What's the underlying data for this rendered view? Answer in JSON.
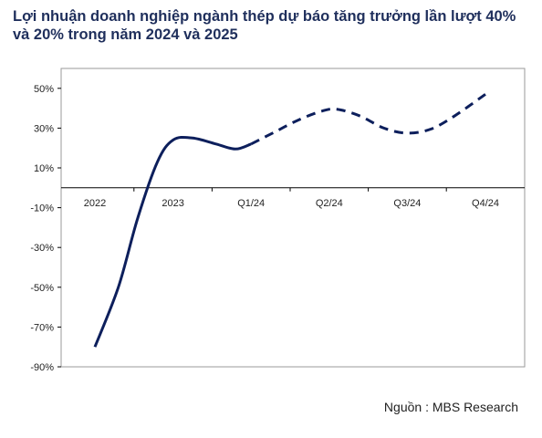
{
  "title": "Lợi nhuận doanh nghiệp ngành thép dự báo tăng trưởng lần lượt 40% và 20% trong năm 2024 và 2025",
  "source": "Nguồn :  MBS Research",
  "colors": {
    "line": "#0d1f5c",
    "frame": "#9a9a9a",
    "axis": "#000000",
    "title": "#1f2f5c"
  },
  "chart_data": {
    "type": "line",
    "categories": [
      "2022",
      "2023",
      "Q1/24",
      "Q2/24",
      "Q3/24",
      "Q4/24"
    ],
    "y_ticks": [
      "50%",
      "30%",
      "10%",
      "-10%",
      "-30%",
      "-50%",
      "-70%",
      "-90%"
    ],
    "ylim": [
      -90,
      50
    ],
    "grid": false,
    "series": [
      {
        "style": "solid",
        "x": [
          0.0,
          0.3,
          0.55,
          0.8,
          1.0,
          1.25,
          1.55,
          1.8,
          2.0
        ],
        "y": [
          -80,
          -50,
          -15,
          13,
          24,
          25,
          22,
          19.5,
          22
        ]
      },
      {
        "style": "dashed",
        "x": [
          2.0,
          2.3,
          2.6,
          2.9,
          3.1,
          3.4,
          3.7,
          4.0,
          4.3,
          4.6,
          5.0
        ],
        "y": [
          22,
          28,
          34,
          38.5,
          39.5,
          36,
          30,
          27.5,
          29.5,
          36,
          47
        ]
      }
    ]
  }
}
